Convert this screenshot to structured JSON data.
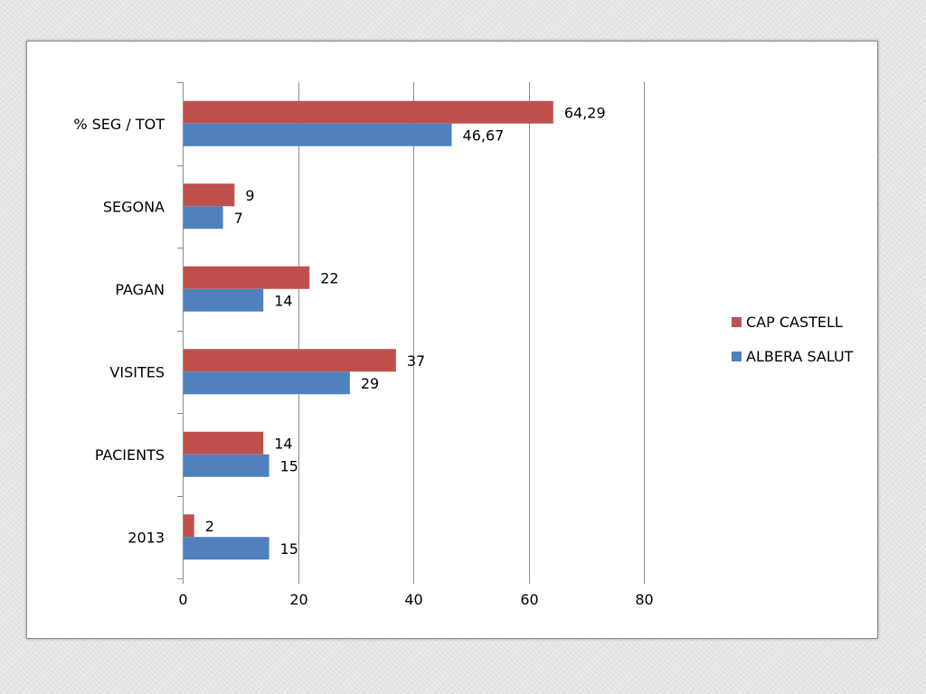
{
  "chart_data": {
    "type": "bar",
    "orientation": "horizontal",
    "categories": [
      "% SEG / TOT",
      "SEGONA",
      "PAGAN",
      "VISITES",
      "PACIENTS",
      "2013"
    ],
    "series": [
      {
        "name": "CAP CASTELL",
        "color": "#c0504d",
        "values": [
          64.29,
          9,
          22,
          37,
          14,
          2
        ],
        "labels": [
          "64,29",
          "9",
          "22",
          "37",
          "14",
          "2"
        ]
      },
      {
        "name": "ALBERA SALUT",
        "color": "#4f81bd",
        "values": [
          46.67,
          7,
          14,
          29,
          15,
          15
        ],
        "labels": [
          "46,67",
          "7",
          "14",
          "29",
          "15",
          "15"
        ]
      }
    ],
    "xlim": [
      0,
      80
    ],
    "xticks": [
      "0",
      "20",
      "40",
      "60",
      "80"
    ],
    "xtick_values": [
      0,
      20,
      40,
      60,
      80
    ],
    "grid": "vertical",
    "legend_position": "right"
  }
}
